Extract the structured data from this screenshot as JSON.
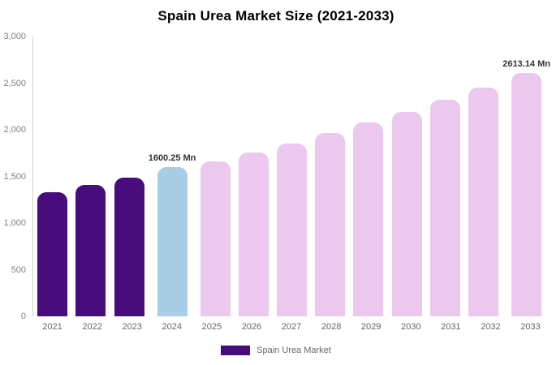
{
  "title": "Spain Urea Market Size (2021-2033)",
  "legend": {
    "label": "Spain Urea Market",
    "swatch_color": "#470d7c"
  },
  "colors": {
    "historical": "#470d7c",
    "highlight": "#a7cee6",
    "forecast": "#ecc8ee",
    "axis_line": "#d2d2d2",
    "tick_text": "#818181",
    "label_text": "#333333"
  },
  "chart_data": {
    "type": "bar",
    "title": "Spain Urea Market Size (2021-2033)",
    "categories": [
      "2021",
      "2022",
      "2023",
      "2024",
      "2025",
      "2026",
      "2027",
      "2028",
      "2029",
      "2030",
      "2031",
      "2032",
      "2033"
    ],
    "values": [
      1330,
      1410,
      1490,
      1600.25,
      1665,
      1760,
      1855,
      1965,
      2075,
      2195,
      2320,
      2455,
      2613.14
    ],
    "bar_colors": [
      "#470d7c",
      "#470d7c",
      "#470d7c",
      "#a7cee6",
      "#ecc8ee",
      "#ecc8ee",
      "#ecc8ee",
      "#ecc8ee",
      "#ecc8ee",
      "#ecc8ee",
      "#ecc8ee",
      "#ecc8ee",
      "#ecc8ee"
    ],
    "annotations": {
      "3": "1600.25 Mn",
      "12": "2613.14 Mn"
    },
    "xlabel": "",
    "ylabel": "",
    "ylim": [
      0,
      3000
    ],
    "ytick_values": [
      3000,
      2500,
      2000,
      1500,
      1000,
      500,
      0
    ],
    "yticks": [
      "3,000",
      "2,500",
      "2,000",
      "1,500",
      "1,000",
      "500",
      "0"
    ],
    "grid": false,
    "legend_position": "bottom",
    "legend_entries": [
      "Spain Urea Market"
    ]
  }
}
